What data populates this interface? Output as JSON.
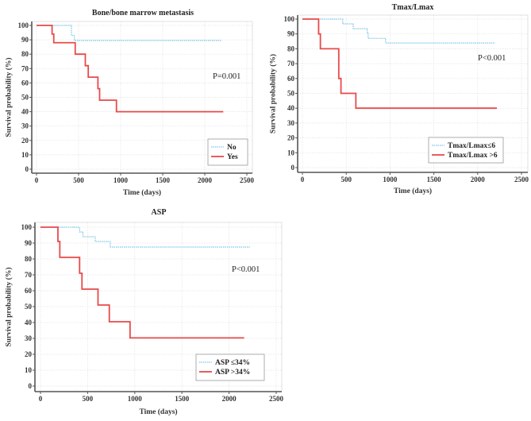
{
  "chart_data": [
    {
      "type": "line",
      "step": true,
      "title": "Bone/bone marrow metastasis",
      "xlabel": "Time (days)",
      "ylabel": "Survival probability (%)",
      "xlim": [
        0,
        2500
      ],
      "ylim": [
        0,
        100
      ],
      "xticks": [
        0,
        500,
        1000,
        1500,
        2000,
        2500
      ],
      "yticks": [
        0,
        10,
        20,
        30,
        40,
        50,
        60,
        70,
        80,
        90,
        100
      ],
      "grid": true,
      "legend_position": "bottom-right",
      "annotation": "P=0.001",
      "series": [
        {
          "name": "No",
          "color": "#7cc6e8",
          "style": "dotted",
          "x": [
            0,
            415,
            440,
            450,
            2200
          ],
          "y": [
            100,
            93,
            93,
            89.5,
            89.5
          ]
        },
        {
          "name": "Yes",
          "color": "#e84a4a",
          "style": "solid",
          "x": [
            0,
            185,
            205,
            460,
            580,
            615,
            730,
            750,
            950,
            2220
          ],
          "y": [
            100,
            94,
            88,
            80,
            72,
            64,
            56,
            48,
            40,
            40
          ]
        }
      ]
    },
    {
      "type": "line",
      "step": true,
      "title": "Tmax/Lmax",
      "xlabel": "Time (days)",
      "ylabel": "Survival probability (%)",
      "xlim": [
        0,
        2500
      ],
      "ylim": [
        0,
        100
      ],
      "xticks": [
        0,
        500,
        1000,
        1500,
        2000,
        2500
      ],
      "yticks": [
        0,
        10,
        20,
        30,
        40,
        50,
        60,
        70,
        80,
        90,
        100
      ],
      "grid": true,
      "legend_position": "bottom-right",
      "annotation": "P<0.001",
      "series": [
        {
          "name": "Tmax/Lmax≤6",
          "color": "#7cc6e8",
          "style": "dotted",
          "x": [
            0,
            460,
            580,
            740,
            750,
            950,
            2200
          ],
          "y": [
            100,
            96.8,
            93.5,
            90.3,
            87,
            83.9,
            83.9
          ]
        },
        {
          "name": "Tmax/Lmax >6",
          "color": "#e84a4a",
          "style": "solid",
          "x": [
            0,
            185,
            205,
            415,
            440,
            610,
            2220
          ],
          "y": [
            100,
            90,
            80,
            60,
            50,
            40,
            40
          ]
        }
      ]
    },
    {
      "type": "line",
      "step": true,
      "title": "ASP",
      "xlabel": "Time (days)",
      "ylabel": "Survival probability (%)",
      "xlim": [
        0,
        2500
      ],
      "ylim": [
        0,
        100
      ],
      "xticks": [
        0,
        500,
        1000,
        1500,
        2000,
        2500
      ],
      "yticks": [
        0,
        10,
        20,
        30,
        40,
        50,
        60,
        70,
        80,
        90,
        100
      ],
      "grid": true,
      "legend_position": "bottom-right",
      "annotation": "P<0.001",
      "series": [
        {
          "name": "ASP ≤34%",
          "color": "#7cc6e8",
          "style": "dotted",
          "x": [
            0,
            415,
            450,
            580,
            740,
            2220
          ],
          "y": [
            100,
            97,
            94,
            91,
            87.5,
            87.5
          ]
        },
        {
          "name": "ASP >34%",
          "color": "#e84a4a",
          "style": "solid",
          "x": [
            0,
            185,
            205,
            415,
            440,
            610,
            730,
            950,
            2160
          ],
          "y": [
            100,
            91,
            81,
            71,
            61,
            51,
            40.5,
            30.3,
            30.3
          ]
        }
      ]
    }
  ]
}
